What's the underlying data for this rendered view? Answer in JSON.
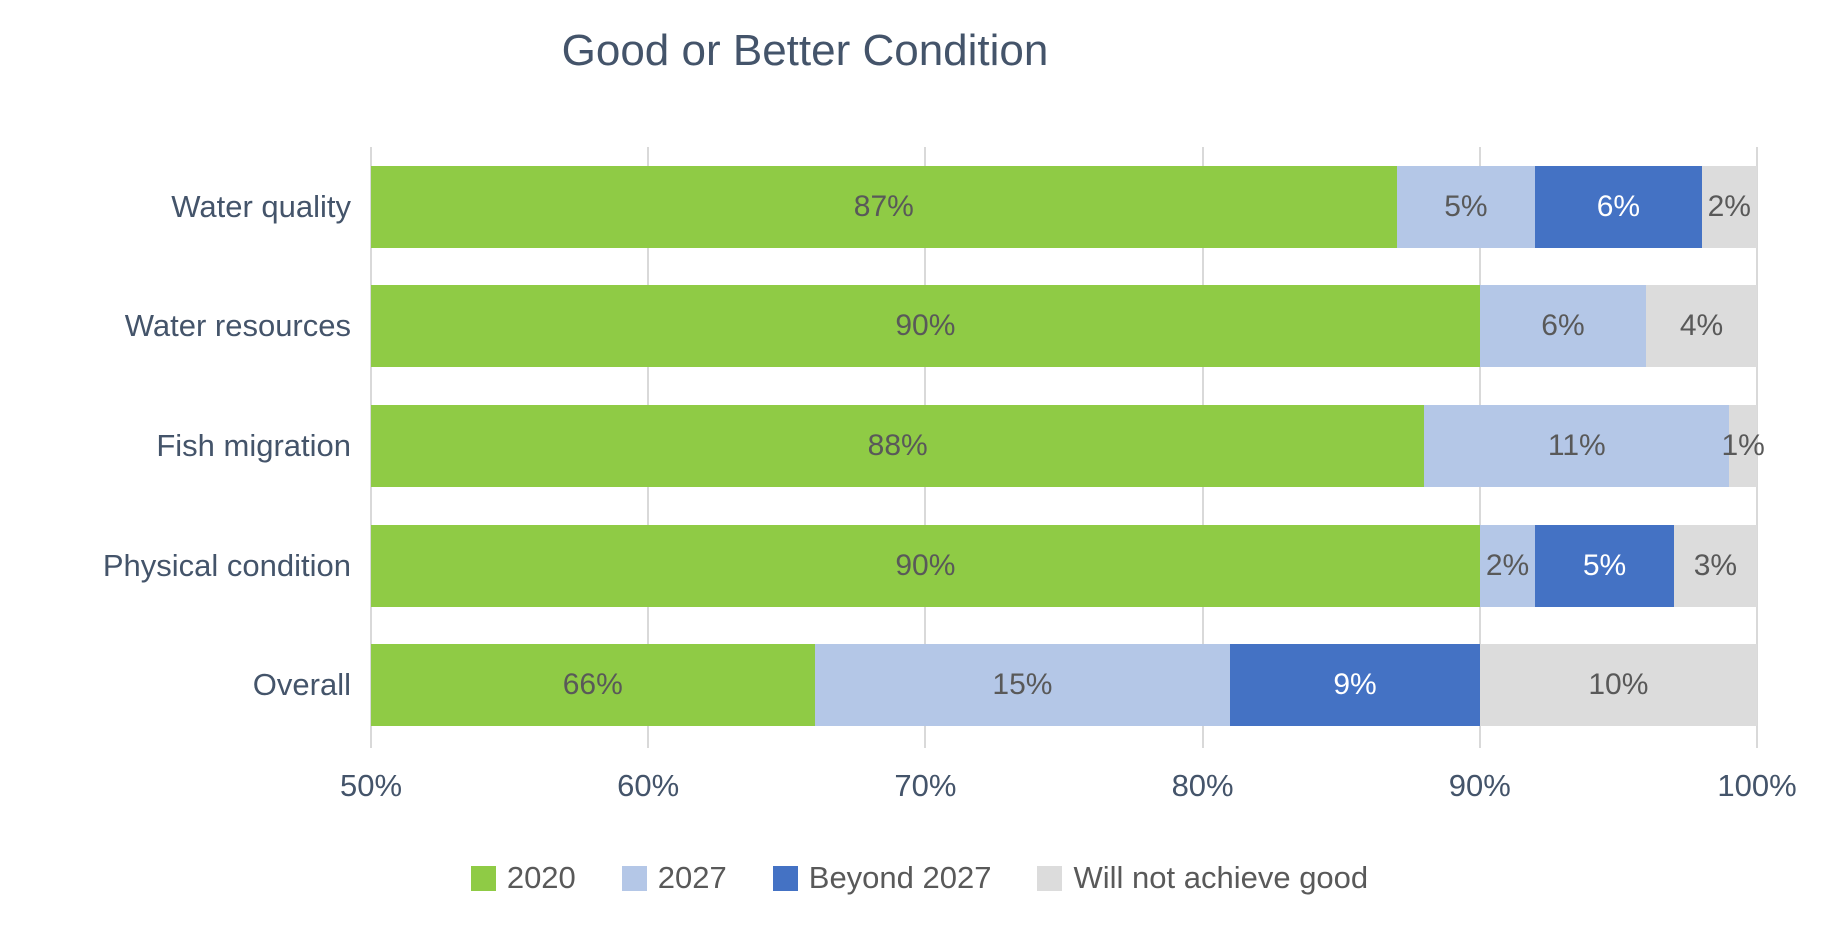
{
  "title": "Good or Better Condition",
  "colors": {
    "title_text": "#44546A",
    "axis_text": "#44546A",
    "label_dark": "#595959",
    "label_light": "#FFFFFF",
    "gridline": "#D9D9D9",
    "background": "#FFFFFF"
  },
  "chart_data": {
    "type": "bar",
    "variant": "horizontal-stacked-100",
    "title": "Good or Better Condition",
    "categories": [
      "Water quality",
      "Water resources",
      "Fish migration",
      "Physical condition",
      "Overall"
    ],
    "series": [
      {
        "name": "2020",
        "color": "#8FCB45",
        "label_color": "#595959",
        "values": [
          87,
          90,
          88,
          90,
          66
        ]
      },
      {
        "name": "2027",
        "color": "#B4C7E7",
        "label_color": "#595959",
        "values": [
          5,
          6,
          11,
          2,
          15
        ]
      },
      {
        "name": "Beyond 2027",
        "color": "#4472C4",
        "label_color": "#FFFFFF",
        "values": [
          6,
          0,
          0,
          5,
          9
        ]
      },
      {
        "name": "Will not achieve good",
        "color": "#DCDCDC",
        "label_color": "#595959",
        "values": [
          2,
          4,
          1,
          3,
          10
        ]
      }
    ],
    "data_label_format": "{value}%",
    "xlabel": "",
    "ylabel": "",
    "xlim": [
      50,
      100
    ],
    "x_tick_labels": [
      "50%",
      "60%",
      "70%",
      "80%",
      "90%",
      "100%"
    ],
    "grid": "vertical",
    "legend_position": "bottom"
  }
}
